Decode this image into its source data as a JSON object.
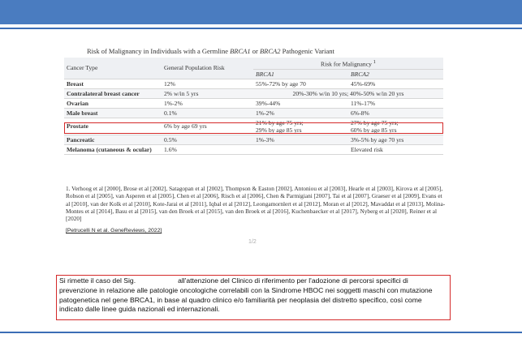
{
  "table": {
    "title_prefix": "Risk of Malignancy in Individuals with a Germline ",
    "title_gene1": "BRCA1",
    "title_mid": " or ",
    "title_gene2": "BRCA2",
    "title_suffix": " Pathogenic Variant",
    "headers": {
      "cancer_type": "Cancer Type",
      "general_risk": "General Population Risk",
      "risk_for_malignancy": "Risk for Malignancy",
      "footnote_mark": "1",
      "brca1": "BRCA1",
      "brca2": "BRCA2"
    },
    "rows": [
      {
        "cancer": "Breast",
        "general": "12%",
        "brca1": "55%-72% by age 70",
        "brca2": "45%-69%"
      },
      {
        "cancer": "Contralateral breast cancer",
        "general": "2% w/in 5 yrs",
        "combined": "20%-30% w/in 10 yrs; 40%-50% w/in 20 yrs"
      },
      {
        "cancer": "Ovarian",
        "general": "1%-2%",
        "brca1": "39%-44%",
        "brca2": "11%-17%"
      },
      {
        "cancer": "Male breast",
        "general": "0.1%",
        "brca1": "1%-2%",
        "brca2": "6%-8%"
      },
      {
        "cancer": "Prostate",
        "general": "6% by age 69 yrs",
        "brca1_line1": "21% by age 75 yrs;",
        "brca1_line2": "29% by age 85 yrs",
        "brca2_line1": "27% by age 75 yrs;",
        "brca2_line2": "60% by age 85 yrs"
      },
      {
        "cancer": "Pancreatic",
        "general": "0.5%",
        "brca1": "1%-3%",
        "brca2": "3%-5% by age 70 yrs"
      },
      {
        "cancer": "Melanoma (cutaneous & ocular)",
        "general": "1.6%",
        "brca1": "",
        "brca2": "Elevated risk"
      }
    ]
  },
  "citations": "1. Verhoog et al [2000], Brose et al [2002], Satagopan et al [2002], Thompson & Easton [2002], Antoniou et al [2003], Hearle et al [2003], Kirova et al [2005], Robson et al [2005], van Asperen et al [2005], Chen et al [2006], Risch et al [2006], Chen & Parmigiani [2007], Tai et al [2007], Graeser et al [2009], Evans et al [2010], van der Kolk et al [2010], Kote-Jarai et al [2011], Iqbal et al [2012], Leongamornlert et al [2012], Moran et al [2012], Mavaddat et al [2013], Molina-Montes et al [2014], Basu et al [2015], van den Broek et al [2015], van den Broek et al [2016], Kuchenbaecker et al [2017], Nyberg et al [2020], Reiner et al [2020]",
  "source": "[Petrucelli N et al. GeneReviews, 2022]",
  "page_number": "1/2",
  "note": {
    "part1": "Si rimette il caso del Sig.",
    "part2": "all'attenzione del Clinico di riferimento per l'adozione di percorsi specifici di prevenzione in relazione alle patologie oncologiche correlabili con la Sindrome HBOC nei soggetti maschi con mutazione patogenetica nel gene BRCA1, in base al quadro clinico e/o familiarità per neoplasia del distretto specifico, così come indicato dalle linee guida nazionali ed internazionali."
  },
  "colors": {
    "header_bar": "#4a7cc0",
    "highlight": "#d42a2a"
  }
}
